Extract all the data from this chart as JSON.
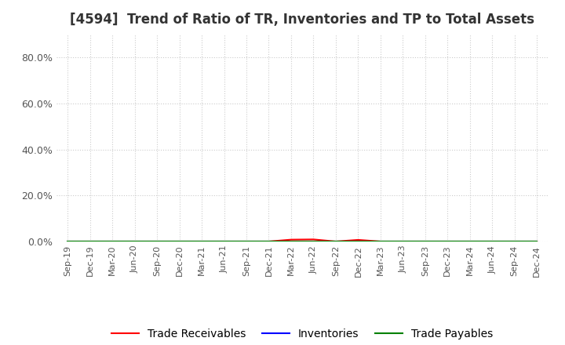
{
  "title": "[4594]  Trend of Ratio of TR, Inventories and TP to Total Assets",
  "title_fontsize": 12,
  "x_labels": [
    "Sep-19",
    "Dec-19",
    "Mar-20",
    "Jun-20",
    "Sep-20",
    "Dec-20",
    "Mar-21",
    "Jun-21",
    "Sep-21",
    "Dec-21",
    "Mar-22",
    "Jun-22",
    "Sep-22",
    "Dec-22",
    "Mar-23",
    "Jun-23",
    "Sep-23",
    "Dec-23",
    "Mar-24",
    "Jun-24",
    "Sep-24",
    "Dec-24"
  ],
  "ylim": [
    0.0,
    0.9
  ],
  "yticks": [
    0.0,
    0.2,
    0.4,
    0.6,
    0.8
  ],
  "ytick_labels": [
    "0.0%",
    "20.0%",
    "40.0%",
    "60.0%",
    "80.0%"
  ],
  "trade_receivables": [
    0,
    0,
    0,
    0,
    0,
    0,
    0,
    0,
    0,
    0,
    0.008,
    0.009,
    0,
    0.007,
    0,
    0,
    0,
    0,
    0,
    0,
    0,
    0
  ],
  "inventories": [
    0,
    0,
    0,
    0,
    0,
    0,
    0,
    0,
    0,
    0,
    0,
    0,
    0,
    0,
    0,
    0,
    0,
    0,
    0,
    0,
    0,
    0
  ],
  "trade_payables": [
    0,
    0,
    0,
    0,
    0,
    0,
    0,
    0,
    0,
    0,
    0,
    0,
    0,
    0,
    0,
    0,
    0,
    0,
    0,
    0,
    0,
    0
  ],
  "tr_color": "#ff0000",
  "inv_color": "#0000ff",
  "tp_color": "#008000",
  "legend_labels": [
    "Trade Receivables",
    "Inventories",
    "Trade Payables"
  ],
  "background_color": "#ffffff",
  "grid_color": "#cccccc",
  "line_width": 1.5
}
